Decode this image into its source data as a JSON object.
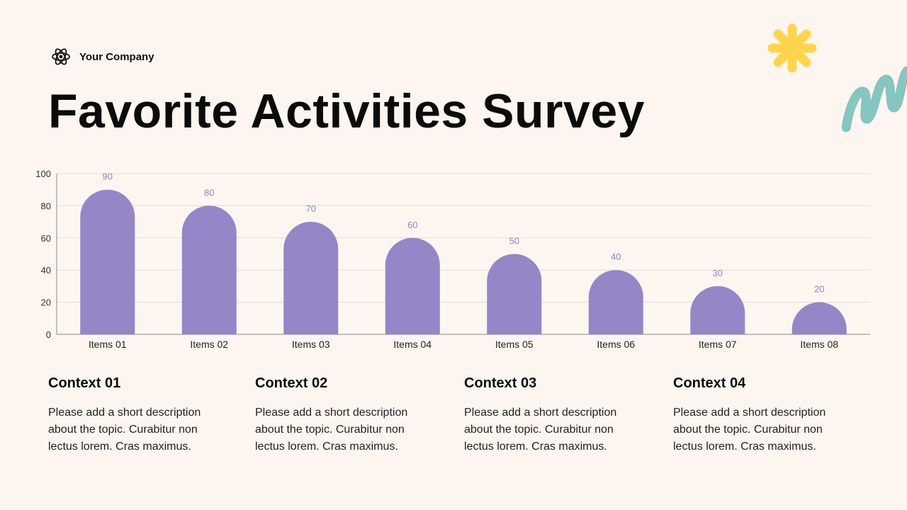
{
  "brand": {
    "name": "Your Company",
    "logo_icon": "atom-icon"
  },
  "title": "Favorite Activities Survey",
  "decorations": {
    "star_color": "#ffd54f",
    "squiggle_color": "#86c5c0"
  },
  "colors": {
    "bar": "#9586c8",
    "value_label": "#8c86c4",
    "grid": "#dcdcdc",
    "axis": "#888888"
  },
  "chart_data": {
    "type": "bar",
    "categories": [
      "Items 01",
      "Items 02",
      "Items 03",
      "Items 04",
      "Items 05",
      "Items 06",
      "Items 07",
      "Items 08"
    ],
    "values": [
      90,
      80,
      70,
      60,
      50,
      40,
      30,
      20
    ],
    "data_labels": [
      "90",
      "80",
      "70",
      "60",
      "50",
      "40",
      "30",
      "20"
    ],
    "yticks": [
      "0",
      "20",
      "40",
      "60",
      "80",
      "100"
    ],
    "ylim": [
      0,
      100
    ],
    "grid": true,
    "legend": "none",
    "title": "",
    "xlabel": "",
    "ylabel": ""
  },
  "contexts": [
    {
      "title": "Context 01",
      "body": "Please add a short description about the topic. Curabitur non lectus lorem. Cras maximus."
    },
    {
      "title": "Context 02",
      "body": "Please add a short description about the topic. Curabitur non lectus lorem. Cras maximus."
    },
    {
      "title": "Context 03",
      "body": "Please add a short description about the topic. Curabitur non lectus lorem. Cras maximus."
    },
    {
      "title": "Context 04",
      "body": "Please add a short description about the topic. Curabitur non lectus lorem. Cras maximus."
    }
  ]
}
